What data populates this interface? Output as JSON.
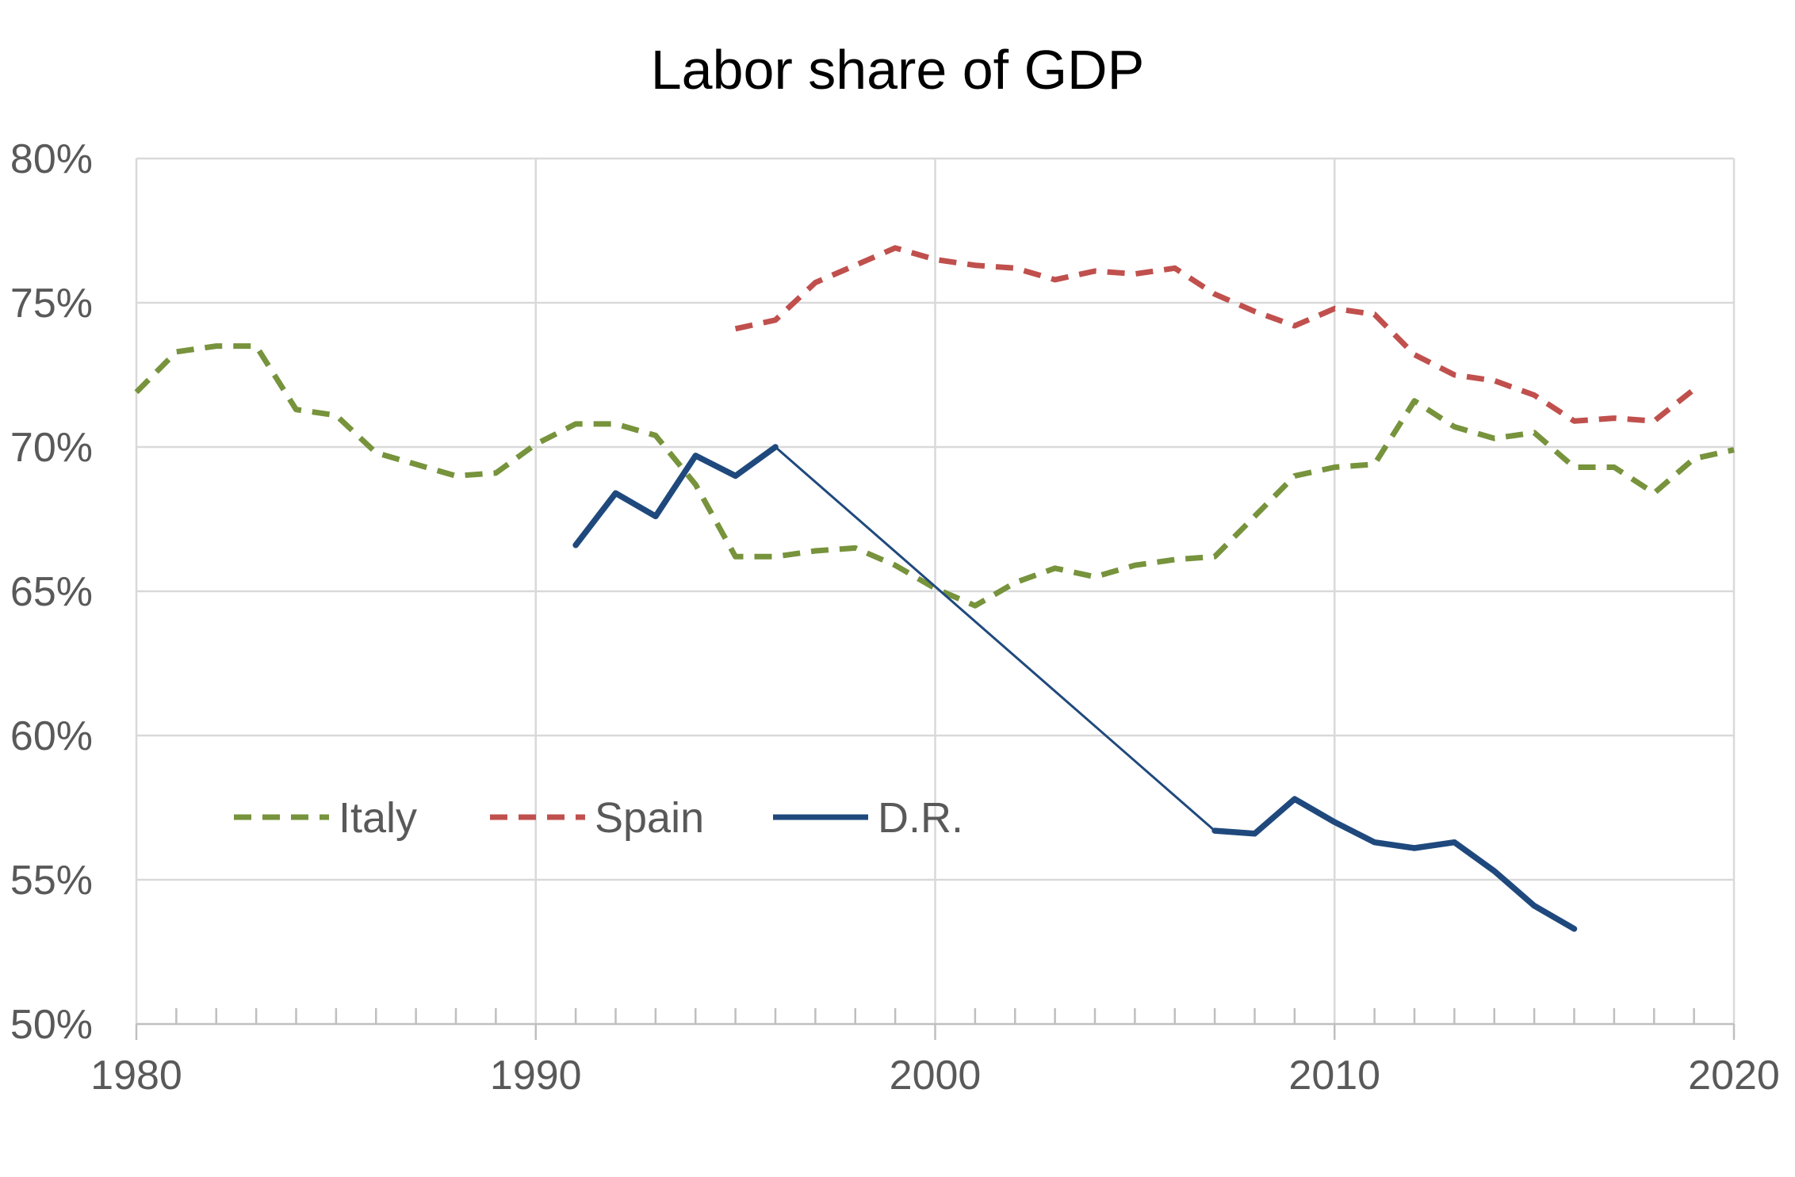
{
  "chart_data": {
    "type": "line",
    "title": "Labor share of GDP",
    "xlabel": "",
    "ylabel": "",
    "xlim": [
      1980,
      2020
    ],
    "ylim": [
      0.5,
      0.8
    ],
    "x_ticks": [
      1980,
      1990,
      2000,
      2010,
      2020
    ],
    "x_tick_labels": [
      "1980",
      "1990",
      "2000",
      "2010",
      "2020"
    ],
    "y_ticks": [
      0.5,
      0.55,
      0.6,
      0.65,
      0.7,
      0.75,
      0.8
    ],
    "y_tick_labels": [
      "50%",
      "55%",
      "60%",
      "65%",
      "70%",
      "75%",
      "80%"
    ],
    "minor_x_ticks_every": 1,
    "grid": true,
    "legend_position": "bottom-left inside",
    "series": [
      {
        "name": "Italy",
        "color": "#77933c",
        "style": "dashed",
        "points": [
          [
            1980,
            0.719
          ],
          [
            1981,
            0.733
          ],
          [
            1982,
            0.735
          ],
          [
            1983,
            0.735
          ],
          [
            1984,
            0.713
          ],
          [
            1985,
            0.711
          ],
          [
            1986,
            0.698
          ],
          [
            1987,
            0.694
          ],
          [
            1988,
            0.69
          ],
          [
            1989,
            0.691
          ],
          [
            1990,
            0.701
          ],
          [
            1991,
            0.708
          ],
          [
            1992,
            0.708
          ],
          [
            1993,
            0.704
          ],
          [
            1994,
            0.687
          ],
          [
            1995,
            0.662
          ],
          [
            1996,
            0.662
          ],
          [
            1997,
            0.664
          ],
          [
            1998,
            0.665
          ],
          [
            1999,
            0.659
          ],
          [
            2000,
            0.651
          ],
          [
            2001,
            0.645
          ],
          [
            2002,
            0.653
          ],
          [
            2003,
            0.658
          ],
          [
            2004,
            0.655
          ],
          [
            2005,
            0.659
          ],
          [
            2006,
            0.661
          ],
          [
            2007,
            0.662
          ],
          [
            2008,
            0.676
          ],
          [
            2009,
            0.69
          ],
          [
            2010,
            0.693
          ],
          [
            2011,
            0.694
          ],
          [
            2012,
            0.716
          ],
          [
            2013,
            0.707
          ],
          [
            2014,
            0.703
          ],
          [
            2015,
            0.705
          ],
          [
            2016,
            0.693
          ],
          [
            2017,
            0.693
          ],
          [
            2018,
            0.684
          ],
          [
            2019,
            0.696
          ],
          [
            2020,
            0.699
          ]
        ]
      },
      {
        "name": "Spain",
        "color": "#c0504d",
        "style": "dashed",
        "points": [
          [
            1995,
            0.741
          ],
          [
            1996,
            0.744
          ],
          [
            1997,
            0.757
          ],
          [
            1998,
            0.763
          ],
          [
            1999,
            0.769
          ],
          [
            2000,
            0.765
          ],
          [
            2001,
            0.763
          ],
          [
            2002,
            0.762
          ],
          [
            2003,
            0.758
          ],
          [
            2004,
            0.761
          ],
          [
            2005,
            0.76
          ],
          [
            2006,
            0.762
          ],
          [
            2007,
            0.753
          ],
          [
            2008,
            0.747
          ],
          [
            2009,
            0.742
          ],
          [
            2010,
            0.748
          ],
          [
            2011,
            0.746
          ],
          [
            2012,
            0.732
          ],
          [
            2013,
            0.725
          ],
          [
            2014,
            0.723
          ],
          [
            2015,
            0.718
          ],
          [
            2016,
            0.709
          ],
          [
            2017,
            0.71
          ],
          [
            2018,
            0.709
          ],
          [
            2019,
            0.72
          ]
        ]
      },
      {
        "name": "D.R.",
        "color": "#1f497d",
        "style": "solid",
        "segments": [
          {
            "weight": "thick",
            "points": [
              [
                1991,
                0.666
              ],
              [
                1992,
                0.684
              ],
              [
                1993,
                0.676
              ],
              [
                1994,
                0.697
              ],
              [
                1995,
                0.69
              ],
              [
                1996,
                0.7
              ]
            ]
          },
          {
            "weight": "thin",
            "points": [
              [
                1996,
                0.7
              ],
              [
                2007,
                0.567
              ]
            ]
          },
          {
            "weight": "thick",
            "points": [
              [
                2007,
                0.567
              ],
              [
                2008,
                0.566
              ],
              [
                2009,
                0.578
              ],
              [
                2010,
                0.57
              ],
              [
                2011,
                0.563
              ],
              [
                2012,
                0.561
              ],
              [
                2013,
                0.563
              ],
              [
                2014,
                0.553
              ],
              [
                2015,
                0.541
              ],
              [
                2016,
                0.533
              ]
            ]
          }
        ]
      }
    ]
  }
}
